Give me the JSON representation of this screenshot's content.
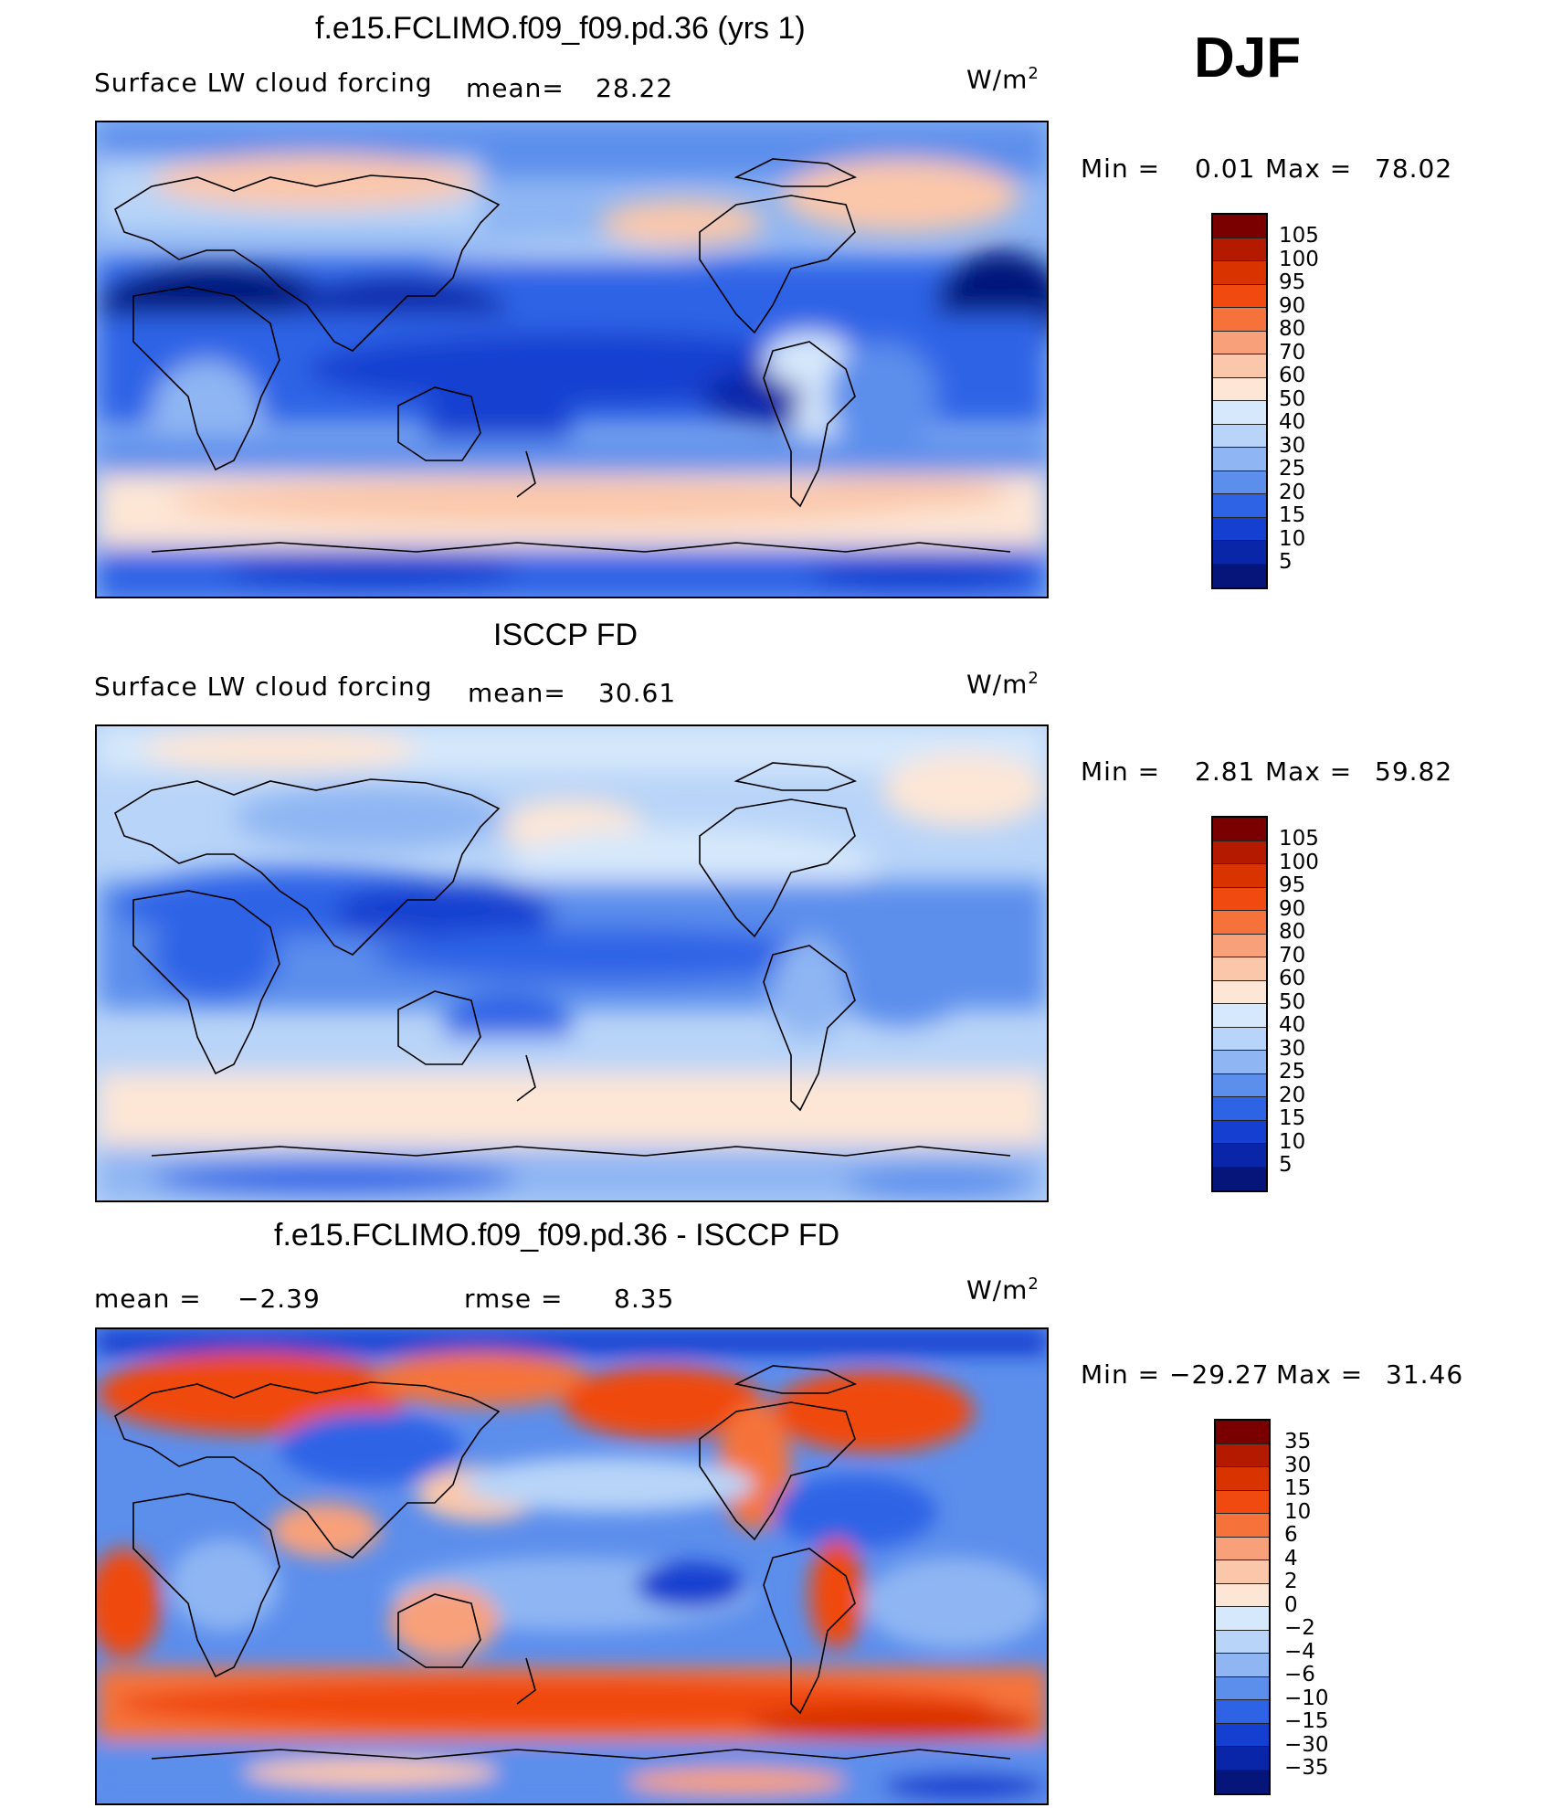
{
  "season": "DJF",
  "panels": [
    {
      "id": "model",
      "title": "f.e15.FCLIMO.f09_f09.pd.36 (yrs 1)",
      "left_label": "Surface LW cloud forcing",
      "stat1_label": "mean=",
      "stat1_value": "28.22",
      "units": "W/m",
      "units_sup": "2",
      "min_label": "Min =",
      "min_value": "0.01",
      "max_label": "Max =",
      "max_value": "78.02",
      "colorbar_labels": [
        "105",
        "100",
        "95",
        "90",
        "80",
        "70",
        "60",
        "50",
        "40",
        "30",
        "25",
        "20",
        "15",
        "10",
        "5"
      ],
      "colorbar_colors": [
        "#7a0000",
        "#b31a00",
        "#d93300",
        "#f04a10",
        "#f5733a",
        "#f8a07a",
        "#fbc7aa",
        "#fde6d6",
        "#d6e8fb",
        "#b8d4f8",
        "#8fb6f3",
        "#5c8eec",
        "#2f63e6",
        "#143fd0",
        "#0a26a8",
        "#06157a"
      ]
    },
    {
      "id": "obs",
      "title": "ISCCP FD",
      "left_label": "Surface LW cloud forcing",
      "stat1_label": "mean=",
      "stat1_value": "30.61",
      "units": "W/m",
      "units_sup": "2",
      "min_label": "Min =",
      "min_value": "2.81",
      "max_label": "Max =",
      "max_value": "59.82",
      "colorbar_labels": [
        "105",
        "100",
        "95",
        "90",
        "80",
        "70",
        "60",
        "50",
        "40",
        "30",
        "25",
        "20",
        "15",
        "10",
        "5"
      ],
      "colorbar_colors": [
        "#7a0000",
        "#b31a00",
        "#d93300",
        "#f04a10",
        "#f5733a",
        "#f8a07a",
        "#fbc7aa",
        "#fde6d6",
        "#d6e8fb",
        "#b8d4f8",
        "#8fb6f3",
        "#5c8eec",
        "#2f63e6",
        "#143fd0",
        "#0a26a8",
        "#06157a"
      ]
    },
    {
      "id": "diff",
      "title": "f.e15.FCLIMO.f09_f09.pd.36 - ISCCP FD",
      "left_label": "mean =",
      "left_value": "−2.39",
      "stat1_label": "rmse =",
      "stat1_value": "8.35",
      "units": "W/m",
      "units_sup": "2",
      "min_label": "Min =",
      "min_value": "−29.27",
      "max_label": "Max =",
      "max_value": "31.46",
      "colorbar_labels": [
        "35",
        "30",
        "15",
        "10",
        "6",
        "4",
        "2",
        "0",
        "−2",
        "−4",
        "−6",
        "−10",
        "−15",
        "−30",
        "−35"
      ],
      "colorbar_colors": [
        "#7a0000",
        "#b31a00",
        "#d93300",
        "#f04a10",
        "#f5733a",
        "#f8a07a",
        "#fbc7aa",
        "#fde6d6",
        "#d6e8fb",
        "#b8d4f8",
        "#8fb6f3",
        "#5c8eec",
        "#2f63e6",
        "#143fd0",
        "#0a26a8",
        "#06157a"
      ]
    }
  ]
}
